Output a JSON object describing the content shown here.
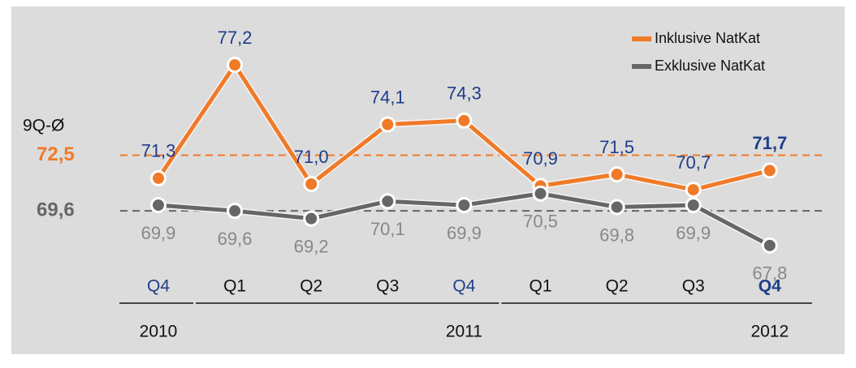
{
  "chart_data": {
    "type": "line",
    "categories": [
      "Q4",
      "Q1",
      "Q2",
      "Q3",
      "Q4",
      "Q1",
      "Q2",
      "Q3",
      "Q4"
    ],
    "category_colors": [
      "#1f3d8a",
      "#111111",
      "#111111",
      "#111111",
      "#1f3d8a",
      "#111111",
      "#111111",
      "#111111",
      "#1f3d8a"
    ],
    "bold_index": 8,
    "years": [
      {
        "label": "2010",
        "from": 0,
        "to": 0
      },
      {
        "label": "2011",
        "from": 1,
        "to": 4
      },
      {
        "label": "2012",
        "from": 5,
        "to": 8
      }
    ],
    "series": [
      {
        "name": "Inklusive NatKat",
        "color": "#f07a28",
        "label_color": "#1f3d8a",
        "values": [
          71.3,
          77.2,
          71.0,
          74.1,
          74.3,
          70.9,
          71.5,
          70.7,
          71.7
        ],
        "value_labels": [
          "71,3",
          "77,2",
          "71,0",
          "74,1",
          "74,3",
          "70,9",
          "71,5",
          "70,7",
          "71,7"
        ]
      },
      {
        "name": "Exklusive NatKat",
        "color": "#666666",
        "label_color": "#888888",
        "values": [
          69.9,
          69.6,
          69.2,
          70.1,
          69.9,
          70.5,
          69.8,
          69.9,
          67.8
        ],
        "value_labels": [
          "69,9",
          "69,6",
          "69,2",
          "70,1",
          "69,9",
          "70,5",
          "69,8",
          "69,9",
          "67,8"
        ]
      }
    ],
    "reference_title": "9Q-Ø",
    "reference_lines": [
      {
        "value": 72.5,
        "label": "72,5",
        "color": "#f07a28"
      },
      {
        "value": 69.6,
        "label": "69,6",
        "color": "#666666"
      }
    ],
    "ylim": [
      65,
      79
    ],
    "legend": "top-right"
  }
}
